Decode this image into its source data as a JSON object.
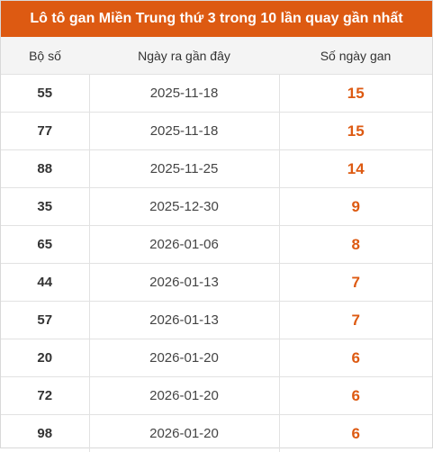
{
  "title": "Lô tô gan Miền Trung thứ 3 trong 10 lần quay gần nhất",
  "headers": {
    "number": "Bộ số",
    "date": "Ngày ra gần đây",
    "days": "Số ngày gan"
  },
  "rows": [
    {
      "number": "55",
      "date": "2025-11-18",
      "days": "15"
    },
    {
      "number": "77",
      "date": "2025-11-18",
      "days": "15"
    },
    {
      "number": "88",
      "date": "2025-11-25",
      "days": "14"
    },
    {
      "number": "35",
      "date": "2025-12-30",
      "days": "9"
    },
    {
      "number": "65",
      "date": "2026-01-06",
      "days": "8"
    },
    {
      "number": "44",
      "date": "2026-01-13",
      "days": "7"
    },
    {
      "number": "57",
      "date": "2026-01-13",
      "days": "7"
    },
    {
      "number": "20",
      "date": "2026-01-20",
      "days": "6"
    },
    {
      "number": "72",
      "date": "2026-01-20",
      "days": "6"
    },
    {
      "number": "98",
      "date": "2026-01-20",
      "days": "6"
    }
  ],
  "colors": {
    "accent": "#dd5a12",
    "header_bg": "#f4f4f4"
  }
}
